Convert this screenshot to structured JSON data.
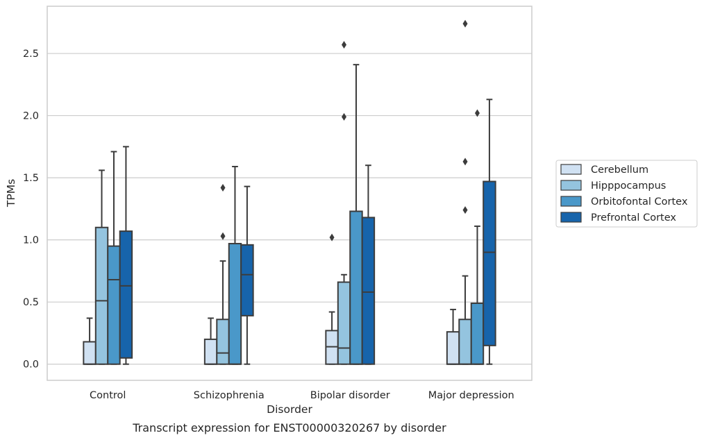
{
  "chart_data": {
    "type": "box",
    "title": "",
    "caption": "Transcript expression for ENST00000320267 by disorder",
    "xlabel": "Disorder",
    "ylabel": "TPMs",
    "ylim": [
      -0.13,
      2.88
    ],
    "yticks": [
      0.0,
      0.5,
      1.0,
      1.5,
      2.0,
      2.5
    ],
    "ytick_labels": [
      "0.0",
      "0.5",
      "1.0",
      "1.5",
      "2.0",
      "2.5"
    ],
    "grid": "horizontal",
    "legend_position": "right",
    "categories": [
      "Control",
      "Schizophrenia",
      "Bipolar disorder",
      "Major depression"
    ],
    "series": [
      {
        "name": "Cerebellum",
        "color": "#d0e1f2",
        "boxes": [
          {
            "whislo": 0.0,
            "q1": 0.0,
            "med": 0.0,
            "q3": 0.18,
            "whishi": 0.37,
            "fliers": []
          },
          {
            "whislo": 0.0,
            "q1": 0.0,
            "med": 0.0,
            "q3": 0.2,
            "whishi": 0.37,
            "fliers": []
          },
          {
            "whislo": 0.0,
            "q1": 0.0,
            "med": 0.14,
            "q3": 0.27,
            "whishi": 0.42,
            "fliers": [
              1.02
            ]
          },
          {
            "whislo": 0.0,
            "q1": 0.0,
            "med": 0.0,
            "q3": 0.26,
            "whishi": 0.44,
            "fliers": []
          }
        ]
      },
      {
        "name": "Hipppocampus",
        "color": "#94c4df",
        "boxes": [
          {
            "whislo": 0.0,
            "q1": 0.0,
            "med": 0.51,
            "q3": 1.1,
            "whishi": 1.56,
            "fliers": []
          },
          {
            "whislo": 0.0,
            "q1": 0.0,
            "med": 0.09,
            "q3": 0.36,
            "whishi": 0.83,
            "fliers": [
              1.03,
              1.42
            ]
          },
          {
            "whislo": 0.0,
            "q1": 0.0,
            "med": 0.13,
            "q3": 0.66,
            "whishi": 0.72,
            "fliers": [
              1.99,
              2.57
            ]
          },
          {
            "whislo": 0.0,
            "q1": 0.0,
            "med": 0.0,
            "q3": 0.36,
            "whishi": 0.71,
            "fliers": [
              1.24,
              1.63,
              2.74
            ]
          }
        ]
      },
      {
        "name": "Orbitofontal Cortex",
        "color": "#4a98c9",
        "boxes": [
          {
            "whislo": 0.0,
            "q1": 0.0,
            "med": 0.68,
            "q3": 0.95,
            "whishi": 1.71,
            "fliers": []
          },
          {
            "whislo": 0.0,
            "q1": 0.0,
            "med": 0.0,
            "q3": 0.97,
            "whishi": 1.59,
            "fliers": []
          },
          {
            "whislo": 0.0,
            "q1": 0.0,
            "med": 0.0,
            "q3": 1.23,
            "whishi": 2.41,
            "fliers": []
          },
          {
            "whislo": 0.0,
            "q1": 0.0,
            "med": 0.0,
            "q3": 0.49,
            "whishi": 1.11,
            "fliers": [
              2.02
            ]
          }
        ]
      },
      {
        "name": "Prefrontal Cortex",
        "color": "#1764ab",
        "boxes": [
          {
            "whislo": 0.0,
            "q1": 0.05,
            "med": 0.63,
            "q3": 1.07,
            "whishi": 1.75,
            "fliers": []
          },
          {
            "whislo": 0.0,
            "q1": 0.39,
            "med": 0.72,
            "q3": 0.96,
            "whishi": 1.43,
            "fliers": []
          },
          {
            "whislo": 0.0,
            "q1": 0.0,
            "med": 0.58,
            "q3": 1.18,
            "whishi": 1.6,
            "fliers": []
          },
          {
            "whislo": 0.0,
            "q1": 0.15,
            "med": 0.9,
            "q3": 1.47,
            "whishi": 2.13,
            "fliers": []
          }
        ]
      }
    ]
  }
}
